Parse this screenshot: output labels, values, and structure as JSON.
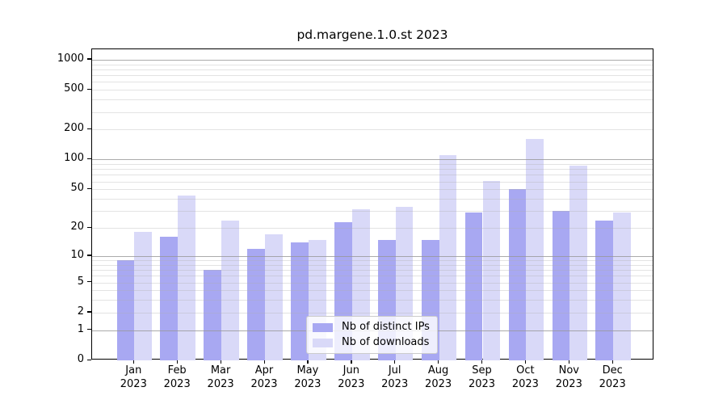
{
  "title": "pd.margene.1.0.st 2023",
  "legend": {
    "items": [
      {
        "label": "Nb of distinct IPs",
        "color": "#a8a8f2"
      },
      {
        "label": "Nb of downloads",
        "color": "#d9d9f8"
      }
    ]
  },
  "axes": {
    "y_tick_labels": [
      "0",
      "1",
      "2",
      "5",
      "10",
      "20",
      "50",
      "100",
      "200",
      "500",
      "1000"
    ],
    "x_tick_year": "2023"
  },
  "chart_data": {
    "type": "bar",
    "title": "pd.margene.1.0.st 2023",
    "categories": [
      "Jan",
      "Feb",
      "Mar",
      "Apr",
      "May",
      "Jun",
      "Jul",
      "Aug",
      "Sep",
      "Oct",
      "Nov",
      "Dec"
    ],
    "year": "2023",
    "series": [
      {
        "name": "Nb of distinct IPs",
        "color": "#a8a8f2",
        "values": [
          9,
          16,
          7,
          12,
          14,
          23,
          15,
          15,
          29,
          50,
          30,
          24
        ]
      },
      {
        "name": "Nb of downloads",
        "color": "#d9d9f8",
        "values": [
          18,
          43,
          24,
          17,
          15,
          31,
          33,
          110,
          61,
          160,
          87,
          29
        ]
      }
    ],
    "yscale": "log1p",
    "ylim": [
      0,
      1270
    ],
    "y_ticks": [
      0,
      1,
      2,
      5,
      10,
      20,
      50,
      100,
      200,
      500,
      1000
    ],
    "grid": {
      "on": true,
      "major": [
        1,
        10,
        100,
        1000
      ],
      "minor": [
        2,
        3,
        4,
        5,
        6,
        7,
        8,
        9,
        20,
        30,
        40,
        50,
        60,
        70,
        80,
        90,
        200,
        300,
        400,
        500,
        600,
        700,
        800,
        900
      ],
      "major_color": "#b0b0b0"
    },
    "legend_position": "lower center",
    "xlabel": "",
    "ylabel": ""
  }
}
